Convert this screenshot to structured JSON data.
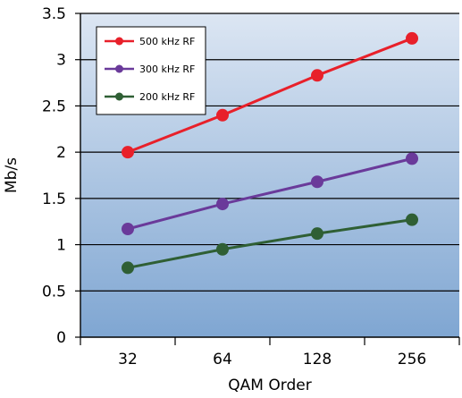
{
  "chart_data": {
    "type": "line",
    "categories": [
      "32",
      "64",
      "128",
      "256"
    ],
    "xlabel": "QAM Order",
    "ylabel": "Mb/s",
    "ylim": [
      0,
      3.5
    ],
    "yticks": [
      "0",
      "0.5",
      "1",
      "1.5",
      "2",
      "2.5",
      "3",
      "3.5"
    ],
    "grid": "horizontal",
    "legend": "top-left",
    "background": "gradient light-blue to blue",
    "series": [
      {
        "name": "500 kHz RF",
        "color": "#e8202a",
        "values": [
          2.0,
          2.4,
          2.83,
          3.23
        ]
      },
      {
        "name": "300 kHz RF",
        "color": "#6a3a9a",
        "values": [
          1.17,
          1.44,
          1.68,
          1.93
        ]
      },
      {
        "name": "200 kHz RF",
        "color": "#2f5f34",
        "values": [
          0.75,
          0.95,
          1.12,
          1.27
        ]
      }
    ]
  }
}
